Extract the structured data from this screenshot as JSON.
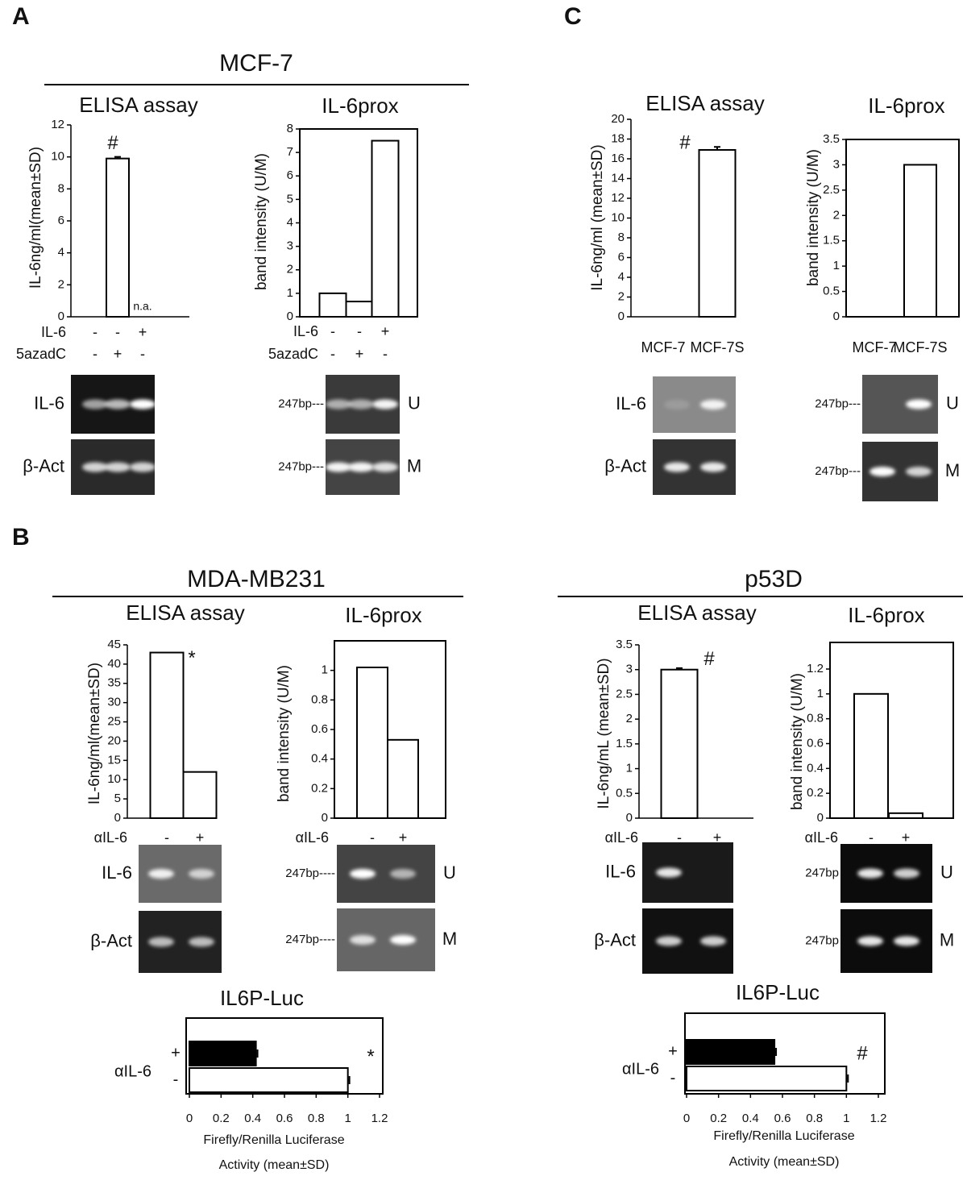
{
  "figure": {
    "panel_labels": [
      "A",
      "B",
      "C"
    ],
    "groups": [
      "MCF-7",
      "MDA-MB231",
      "p53D"
    ],
    "gels": [
      {
        "label": "IL-6"
      },
      {
        "label": "β-Act"
      },
      {
        "label": "247bp---",
        "tag": "U"
      },
      {
        "label": "247bp---",
        "tag": "M"
      },
      {
        "label": "IL-6"
      },
      {
        "label": "β-Act"
      },
      {
        "label": "247bp---",
        "tag": "U"
      },
      {
        "label": "247bp---",
        "tag": "M"
      },
      {
        "label": "IL-6"
      },
      {
        "label": "β-Act"
      },
      {
        "label": "247bp----",
        "tag": "U"
      },
      {
        "label": "247bp----",
        "tag": "M"
      },
      {
        "label": "IL-6"
      },
      {
        "label": "β-Act"
      },
      {
        "label": "247bp",
        "tag": "U"
      },
      {
        "label": "247bp",
        "tag": "M"
      }
    ]
  },
  "chart_data": [
    {
      "type": "bar",
      "title": "ELISA  assay",
      "y_label": "IL-6ng/ml(mean±SD)",
      "categories": [
        null,
        null,
        null
      ],
      "values": [
        0,
        9.9,
        null
      ],
      "errors": [
        null,
        0.1,
        null
      ],
      "value_labels": [
        null,
        null,
        "n.a."
      ],
      "annotations": [
        null,
        "#",
        null
      ],
      "conditions": [
        {
          "name": "IL-6",
          "signs": [
            "-",
            "-",
            "+"
          ]
        },
        {
          "name": "5azadC",
          "signs": [
            "-",
            "+",
            "-"
          ]
        }
      ],
      "color": "#ffffff",
      "ylim": [
        0,
        12
      ],
      "yticks": [
        0,
        2,
        4,
        6,
        8,
        10,
        12
      ]
    },
    {
      "type": "bar",
      "title": "IL-6prox",
      "y_label": "band intensity (U/M)",
      "categories": [
        null,
        null,
        null
      ],
      "values": [
        1,
        0.65,
        7.5
      ],
      "conditions": [
        {
          "name": "IL-6",
          "signs": [
            "-",
            "-",
            "+"
          ]
        },
        {
          "name": "5azadC",
          "signs": [
            "-",
            "+",
            "-"
          ]
        }
      ],
      "color": "#ffffff",
      "ylim": [
        0,
        8
      ],
      "yticks": [
        0,
        1,
        2,
        3,
        4,
        5,
        6,
        7,
        8
      ]
    },
    {
      "type": "bar",
      "title": "ELISA  assay",
      "y_label": "IL-6ng/ml (mean±SD)",
      "categories": [
        "MCF-7",
        "MCF-7S"
      ],
      "values": [
        0,
        16.9
      ],
      "errors": [
        null,
        0.3
      ],
      "annotations": [
        "#",
        null
      ],
      "color": "#ffffff",
      "ylim": [
        0,
        20
      ],
      "yticks": [
        0,
        2,
        4,
        6,
        8,
        10,
        12,
        14,
        16,
        18,
        20
      ]
    },
    {
      "type": "bar",
      "title": "IL-6prox",
      "y_label": "band intensity (U/M)",
      "categories": [
        "MCF-7",
        "MCF-7S"
      ],
      "values": [
        0,
        3
      ],
      "color": "#ffffff",
      "ylim": [
        0,
        3.5
      ],
      "yticks": [
        0,
        0.5,
        1,
        1.5,
        2,
        2.5,
        3,
        3.5
      ]
    },
    {
      "type": "bar",
      "title": "ELISA  assay",
      "y_label": "IL-6ng/ml(mean±SD)",
      "categories": [
        null,
        null
      ],
      "values": [
        43,
        12
      ],
      "annotations": [
        "*",
        null
      ],
      "conditions": [
        {
          "name": "αIL-6",
          "signs": [
            "-",
            "+"
          ]
        }
      ],
      "color": "#ffffff",
      "ylim": [
        0,
        45
      ],
      "yticks": [
        0,
        5,
        10,
        15,
        20,
        25,
        30,
        35,
        40,
        45
      ]
    },
    {
      "type": "bar",
      "title": "IL-6prox",
      "y_label": "band intensity (U/M)",
      "categories": [
        null,
        null
      ],
      "values": [
        1.02,
        0.53
      ],
      "conditions": [
        {
          "name": "αIL-6",
          "signs": [
            "-",
            "+"
          ]
        }
      ],
      "color": "#ffffff",
      "ylim": [
        0,
        1.2
      ],
      "yticks": [
        0,
        0.2,
        0.4,
        0.6,
        0.8,
        1
      ]
    },
    {
      "type": "bar",
      "title": "ELISA  assay",
      "y_label": "IL-6ng/mL (mean±SD)",
      "categories": [
        null,
        null
      ],
      "values": [
        3,
        0
      ],
      "errors": [
        0.03,
        null
      ],
      "annotations": [
        "#",
        null
      ],
      "conditions": [
        {
          "name": "αIL-6",
          "signs": [
            "-",
            "+"
          ]
        }
      ],
      "color": "#ffffff",
      "ylim": [
        0,
        3.5
      ],
      "yticks": [
        0,
        0.5,
        1,
        1.5,
        2,
        2.5,
        3,
        3.5
      ]
    },
    {
      "type": "bar",
      "title": "IL-6prox",
      "y_label": "band intensity (U/M)",
      "categories": [
        null,
        null
      ],
      "values": [
        1,
        0.04
      ],
      "conditions": [
        {
          "name": "αIL-6",
          "signs": [
            "-",
            "+"
          ]
        }
      ],
      "color": "#ffffff",
      "ylim": [
        0,
        1.2
      ],
      "yticks": [
        0,
        0.2,
        0.4,
        0.6,
        0.8,
        1,
        1.2
      ]
    },
    {
      "type": "hbar",
      "title": "IL6P-Luc",
      "y_label": "αIL-6",
      "categories": [
        "+",
        "-"
      ],
      "values": [
        0.42,
        1
      ],
      "errors": [
        0.01,
        0.01
      ],
      "colors": [
        "#000000",
        "#ffffff"
      ],
      "annotation": "*",
      "x_label": [
        "Firefly/Renilla Luciferase",
        "Activity (mean±SD)"
      ],
      "xlim": [
        0,
        1.2
      ],
      "xticks": [
        0,
        0.2,
        0.4,
        0.6,
        0.8,
        1,
        1.2
      ]
    },
    {
      "type": "hbar",
      "title": "IL6P-Luc",
      "y_label": "αIL-6",
      "categories": [
        "+",
        "-"
      ],
      "values": [
        0.55,
        1
      ],
      "errors": [
        0.01,
        0.01
      ],
      "colors": [
        "#000000",
        "#ffffff"
      ],
      "annotation": "#",
      "x_label": [
        "Firefly/Renilla Luciferase",
        "Activity (mean±SD)"
      ],
      "xlim": [
        0,
        1.2
      ],
      "xticks": [
        0,
        0.2,
        0.4,
        0.6,
        0.8,
        1,
        1.2
      ]
    }
  ]
}
